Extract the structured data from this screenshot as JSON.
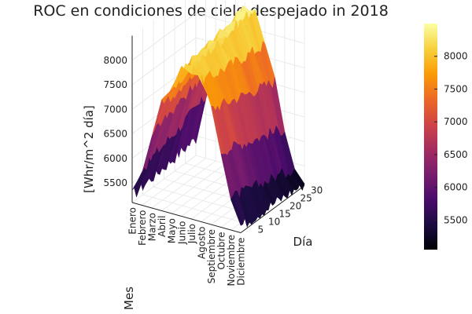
{
  "chart_data": {
    "type": "surface",
    "title": "ROC en condiciones de cielo despejado in 2018",
    "xlabel": "Mes",
    "ylabel": "Día",
    "zlabel": "[Whr/m^2 día]",
    "months": [
      "Enero",
      "Febrero",
      "Marzo",
      "Abril",
      "Mayo",
      "Junio",
      "Julio",
      "Agosto",
      "Septiembre",
      "Octubre",
      "Noviembre",
      "Diciembre"
    ],
    "day_ticks": [
      5,
      10,
      15,
      20,
      25,
      30
    ],
    "z_ticks": [
      5500,
      6000,
      6500,
      7000,
      7500,
      8000
    ],
    "zlim": [
      5100,
      8500
    ],
    "colorbar": {
      "ticks": [
        5500,
        6000,
        6500,
        7000,
        7500,
        8000
      ],
      "range": [
        5050,
        8500
      ],
      "colormap": "inferno",
      "colors": [
        "#000004",
        "#1b0c41",
        "#4a0c6b",
        "#781c6d",
        "#a52c60",
        "#cf4446",
        "#ed6925",
        "#fb9b06",
        "#f7d13d",
        "#fcffa4"
      ]
    },
    "series": [
      {
        "month": "Enero",
        "values_start": 5250,
        "values_end": 5450
      },
      {
        "month": "Febrero",
        "values_start": 5850,
        "values_end": 6350
      },
      {
        "month": "Marzo",
        "values_start": 6650,
        "values_end": 7150
      },
      {
        "month": "Abril",
        "values_start": 7250,
        "values_end": 7650
      },
      {
        "month": "Mayo",
        "values_start": 7700,
        "values_end": 8000
      },
      {
        "month": "Junio",
        "values_start": 8050,
        "values_end": 8350
      },
      {
        "month": "Julio",
        "values_start": 8150,
        "values_end": 8450
      },
      {
        "month": "Agosto",
        "values_start": 7950,
        "values_end": 7750
      },
      {
        "month": "Septiembre",
        "values_start": 7450,
        "values_end": 7050
      },
      {
        "month": "Octubre",
        "values_start": 6650,
        "values_end": 6150
      },
      {
        "month": "Noviembre",
        "values_start": 5750,
        "values_end": 5400
      },
      {
        "month": "Diciembre",
        "values_start": 5250,
        "values_end": 5150
      }
    ]
  }
}
